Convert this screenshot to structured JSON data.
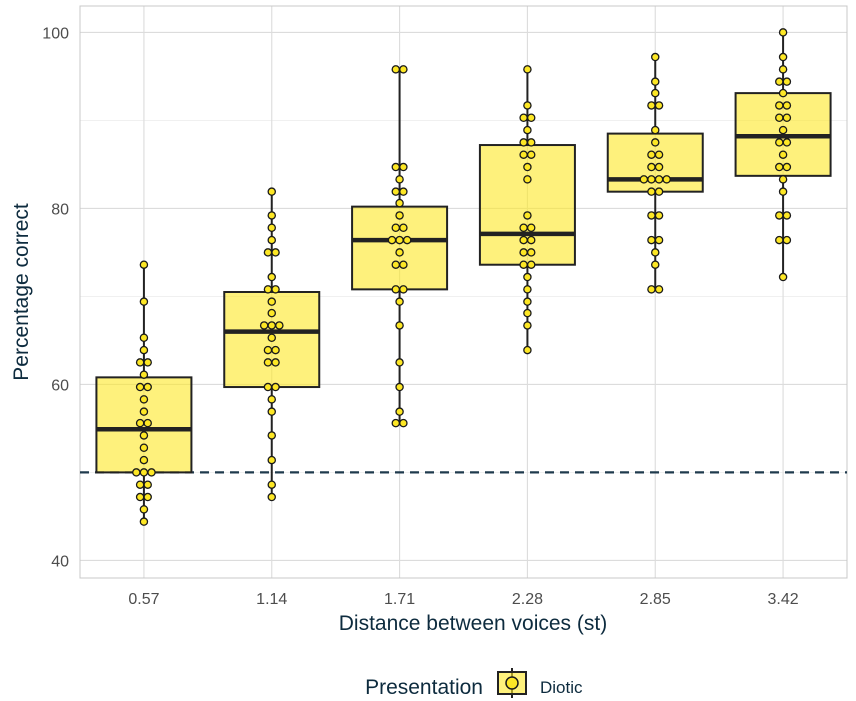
{
  "chart_data": {
    "type": "box",
    "xlabel": "Distance between voices (st)",
    "ylabel": "Percentage correct",
    "ylim": [
      38,
      103
    ],
    "yticks": [
      40,
      60,
      80,
      100
    ],
    "grid": true,
    "reference_line": {
      "y": 50,
      "style": "dashed",
      "color": "#1f3a4d"
    },
    "legend": {
      "title": "Presentation",
      "position": "bottom",
      "entries": [
        {
          "label": "Diotic",
          "fill": "#fde725"
        }
      ]
    },
    "colors": {
      "box_fill": "#fde725",
      "point_fill": "#fde725",
      "stroke": "#222222",
      "label_text": "#0d2b3e",
      "tick_text": "#4d4d4d"
    },
    "categories": [
      "0.57",
      "1.14",
      "1.71",
      "2.28",
      "2.85",
      "3.42"
    ],
    "boxes": [
      {
        "category": "0.57",
        "whisker_low": 44.4,
        "q1": 50.0,
        "median": 54.9,
        "q3": 60.8,
        "whisker_high": 73.6,
        "points": [
          73.6,
          69.4,
          65.3,
          63.9,
          62.5,
          62.5,
          61.1,
          59.7,
          59.7,
          58.3,
          56.9,
          55.6,
          55.6,
          54.2,
          52.8,
          51.4,
          50.0,
          50.0,
          50.0,
          48.6,
          48.6,
          47.2,
          47.2,
          45.8,
          44.4
        ]
      },
      {
        "category": "1.14",
        "whisker_low": 47.2,
        "q1": 59.7,
        "median": 66.0,
        "q3": 70.5,
        "whisker_high": 81.9,
        "points": [
          81.9,
          79.2,
          77.8,
          76.4,
          75.0,
          75.0,
          72.2,
          70.8,
          70.8,
          69.4,
          68.1,
          66.7,
          66.7,
          66.7,
          65.3,
          63.9,
          63.9,
          62.5,
          62.5,
          59.7,
          59.7,
          58.3,
          56.9,
          54.2,
          51.4,
          48.6,
          47.2
        ]
      },
      {
        "category": "1.71",
        "whisker_low": 55.6,
        "q1": 70.8,
        "median": 76.4,
        "q3": 80.2,
        "whisker_high": 95.8,
        "points": [
          95.8,
          95.8,
          84.7,
          84.7,
          83.3,
          81.9,
          81.9,
          80.6,
          79.2,
          77.8,
          77.8,
          76.4,
          76.4,
          76.4,
          75.0,
          73.6,
          73.6,
          70.8,
          70.8,
          69.4,
          66.7,
          62.5,
          59.7,
          56.9,
          55.6,
          55.6
        ]
      },
      {
        "category": "2.28",
        "whisker_low": 63.9,
        "q1": 73.6,
        "median": 77.1,
        "q3": 87.2,
        "whisker_high": 95.8,
        "points": [
          95.8,
          91.7,
          90.3,
          90.3,
          88.9,
          87.5,
          87.5,
          86.1,
          86.1,
          84.7,
          83.3,
          79.2,
          77.8,
          77.8,
          76.4,
          76.4,
          75.0,
          75.0,
          73.6,
          73.6,
          72.2,
          70.8,
          69.4,
          68.1,
          66.7,
          63.9
        ]
      },
      {
        "category": "2.85",
        "whisker_low": 70.8,
        "q1": 81.9,
        "median": 83.3,
        "q3": 88.5,
        "whisker_high": 97.2,
        "points": [
          97.2,
          94.4,
          93.1,
          91.7,
          91.7,
          88.9,
          87.5,
          86.1,
          86.1,
          84.7,
          84.7,
          83.3,
          83.3,
          83.3,
          83.3,
          81.9,
          81.9,
          79.2,
          79.2,
          76.4,
          76.4,
          75.0,
          73.6,
          70.8,
          70.8
        ]
      },
      {
        "category": "3.42",
        "whisker_low": 72.2,
        "q1": 83.7,
        "median": 88.2,
        "q3": 93.1,
        "whisker_high": 100.0,
        "points": [
          100.0,
          97.2,
          95.8,
          94.4,
          94.4,
          93.1,
          91.7,
          91.7,
          90.3,
          90.3,
          88.9,
          87.5,
          87.5,
          86.1,
          84.7,
          84.7,
          83.3,
          81.9,
          79.2,
          79.2,
          76.4,
          76.4,
          72.2
        ]
      }
    ]
  }
}
